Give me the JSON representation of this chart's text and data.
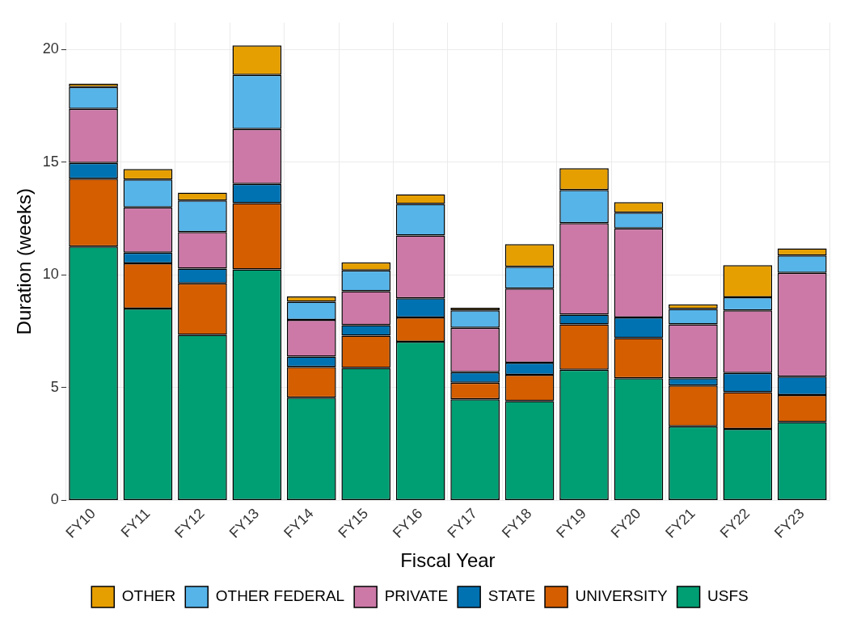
{
  "chart_data": {
    "type": "bar",
    "stacked": true,
    "xlabel": "Fiscal Year",
    "ylabel": "Duration (weeks)",
    "categories": [
      "FY10",
      "FY11",
      "FY12",
      "FY13",
      "FY14",
      "FY15",
      "FY16",
      "FY17",
      "FY18",
      "FY19",
      "FY20",
      "FY21",
      "FY22",
      "FY23"
    ],
    "series": [
      {
        "name": "USFS",
        "color": "#009e73",
        "values": [
          11.26,
          8.51,
          7.35,
          10.25,
          4.56,
          5.88,
          7.04,
          4.49,
          4.41,
          5.8,
          5.42,
          3.29,
          3.17,
          3.48
        ]
      },
      {
        "name": "UNIVERSITY",
        "color": "#d55e00",
        "values": [
          3.01,
          2.01,
          2.28,
          2.94,
          1.36,
          1.43,
          1.08,
          0.73,
          1.16,
          2.01,
          1.78,
          1.81,
          1.63,
          1.2
        ]
      },
      {
        "name": "STATE",
        "color": "#0072b2",
        "values": [
          0.7,
          0.47,
          0.66,
          0.85,
          0.46,
          0.47,
          0.85,
          0.47,
          0.54,
          0.43,
          0.92,
          0.32,
          0.85,
          0.81
        ]
      },
      {
        "name": "PRIVATE",
        "color": "#cc79a7",
        "values": [
          2.4,
          2.01,
          1.62,
          2.44,
          1.63,
          1.5,
          2.79,
          1.97,
          3.29,
          4.06,
          3.95,
          2.39,
          2.78,
          4.61
        ]
      },
      {
        "name": "OTHER FEDERAL",
        "color": "#56b4e9",
        "values": [
          0.97,
          1.24,
          1.4,
          2.4,
          0.81,
          0.93,
          1.39,
          0.77,
          0.97,
          1.47,
          0.7,
          0.68,
          0.58,
          0.77
        ]
      },
      {
        "name": "OTHER",
        "color": "#e69f00",
        "values": [
          0.15,
          0.46,
          0.35,
          1.31,
          0.23,
          0.35,
          0.43,
          0.12,
          1.0,
          0.97,
          0.46,
          0.21,
          1.43,
          0.31
        ]
      }
    ],
    "ylim": [
      0,
      21.2
    ],
    "yticks": [
      0,
      5,
      10,
      15,
      20
    ],
    "grid": true,
    "legend": "bottom"
  }
}
